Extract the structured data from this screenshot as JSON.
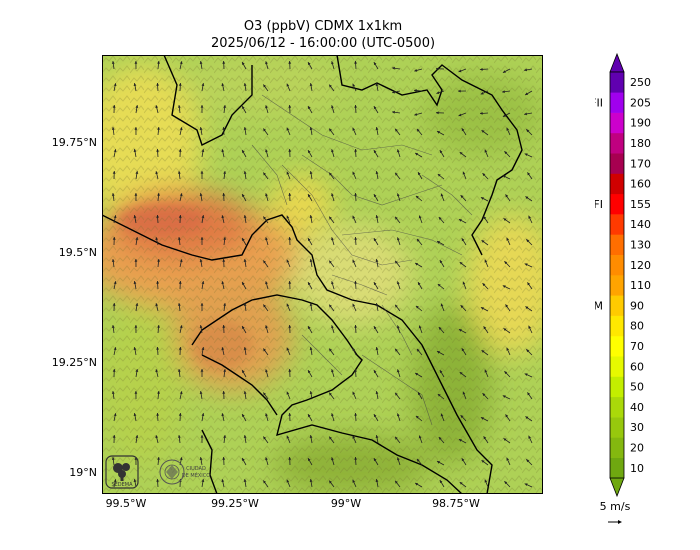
{
  "title_line1": "O3 (ppbV) CDMX 1x1km",
  "title_line2": "2025/06/12 - 16:00:00 (UTC-0500)",
  "y_ticks": [
    "19.75°N",
    "19.5°N",
    "19.25°N",
    "19°N"
  ],
  "x_ticks": [
    "99.5°W",
    "99.25°W",
    "99°W",
    "98.75°W"
  ],
  "colorbar": {
    "levels": [
      "10",
      "20",
      "30",
      "40",
      "50",
      "60",
      "70",
      "80",
      "90",
      "110",
      "120",
      "130",
      "140",
      "155",
      "160",
      "170",
      "180",
      "190",
      "205",
      "250"
    ],
    "colors": [
      "#6fa810",
      "#84b80f",
      "#97c80d",
      "#aad90a",
      "#c3ee00",
      "#e6f900",
      "#ffff00",
      "#ffe800",
      "#ffcb00",
      "#ffa400",
      "#ff8c00",
      "#ff6e00",
      "#ff3a00",
      "#ff0000",
      "#d00000",
      "#a70050",
      "#c00080",
      "#cc00cc",
      "#a000ee",
      "#6000b0"
    ],
    "thresholds": [
      "NOM",
      "FI",
      "FII"
    ]
  },
  "wind_scale_label": "5 m/s",
  "logo_text_1": "SEDEMA",
  "logo_text_2": "CIUDAD DE MÉXICO"
}
